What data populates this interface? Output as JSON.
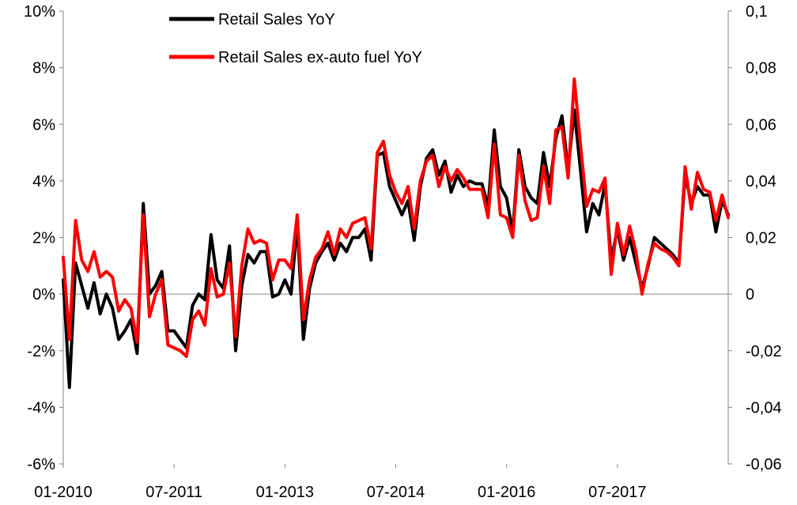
{
  "chart_data": {
    "type": "line",
    "title": "",
    "xlabel": "",
    "ylabel": "",
    "grid": false,
    "legend_position": "top-left",
    "y_left": {
      "ylim": [
        -6,
        10
      ],
      "ticks": [
        "-6%",
        "-4%",
        "-2%",
        "0%",
        "2%",
        "4%",
        "6%",
        "8%",
        "10%"
      ]
    },
    "y_right": {
      "ylim": [
        -0.06,
        0.1
      ],
      "ticks": [
        "-0,06",
        "-0,04",
        "-0,02",
        "0",
        "0,02",
        "0,04",
        "0,06",
        "0,08",
        "0,1"
      ]
    },
    "x_ticks": [
      "01-2010",
      "07-2011",
      "01-2013",
      "07-2014",
      "01-2016",
      "07-2017"
    ],
    "x_tick_positions": [
      0,
      18,
      36,
      54,
      72,
      90
    ],
    "colors": {
      "Retail Sales YoY": "#000000",
      "Retail Sales ex-auto fuel YoY": "#ff0000"
    },
    "series": [
      {
        "name": "Retail Sales YoY",
        "color": "#000000",
        "values": [
          0.5,
          -3.3,
          1.1,
          0.3,
          -0.5,
          0.4,
          -0.7,
          0.0,
          -0.5,
          -1.6,
          -1.3,
          -0.9,
          -2.1,
          3.2,
          0.0,
          0.3,
          0.8,
          -1.3,
          -1.3,
          -1.6,
          -1.9,
          -0.4,
          0.0,
          -0.2,
          2.1,
          0.5,
          0.2,
          1.7,
          -2.0,
          0.3,
          1.4,
          1.1,
          1.5,
          1.5,
          -0.1,
          0.0,
          0.5,
          0.0,
          2.5,
          -1.6,
          0.2,
          1.1,
          1.5,
          1.8,
          1.2,
          1.8,
          1.5,
          2.0,
          2.0,
          2.3,
          1.2,
          4.9,
          5.0,
          3.8,
          3.3,
          2.8,
          3.3,
          1.9,
          3.8,
          4.8,
          5.1,
          4.2,
          4.7,
          3.6,
          4.2,
          3.8,
          4.0,
          3.9,
          3.9,
          3.1,
          5.8,
          3.8,
          3.4,
          2.2,
          5.1,
          3.8,
          3.4,
          3.2,
          5.0,
          3.8,
          5.5,
          6.3,
          4.4,
          6.5,
          4.4,
          2.2,
          3.2,
          2.8,
          3.9,
          1.2,
          2.3,
          1.2,
          2.0,
          1.1,
          0.2,
          1.0,
          2.0,
          1.8,
          1.6,
          1.4,
          1.1,
          4.2,
          3.2,
          3.8,
          3.5,
          3.5,
          2.2,
          3.3,
          2.8
        ]
      },
      {
        "name": "Retail Sales ex-auto fuel YoY",
        "color": "#ff0000",
        "values": [
          1.3,
          -1.6,
          2.6,
          1.2,
          0.8,
          1.5,
          0.6,
          0.8,
          0.6,
          -0.6,
          -0.2,
          -0.5,
          -1.7,
          2.8,
          -0.8,
          0.0,
          0.5,
          -1.8,
          -1.9,
          -2.0,
          -2.2,
          -0.9,
          -0.6,
          -1.1,
          0.9,
          -0.1,
          0.0,
          1.1,
          -1.5,
          1.0,
          2.3,
          1.8,
          1.9,
          1.8,
          0.5,
          1.2,
          1.2,
          0.9,
          2.8,
          -0.9,
          0.5,
          1.3,
          1.6,
          2.2,
          1.4,
          2.3,
          2.0,
          2.5,
          2.6,
          2.7,
          1.6,
          5.0,
          5.4,
          4.2,
          3.6,
          3.2,
          3.8,
          2.3,
          4.0,
          4.7,
          4.9,
          3.8,
          4.5,
          4.0,
          4.4,
          4.1,
          3.7,
          3.7,
          3.7,
          2.7,
          5.3,
          2.8,
          2.7,
          2.0,
          4.9,
          3.3,
          2.6,
          2.7,
          4.5,
          3.2,
          5.8,
          5.9,
          4.1,
          7.6,
          5.3,
          3.1,
          3.7,
          3.6,
          4.1,
          0.7,
          2.5,
          1.4,
          2.4,
          1.5,
          0.0,
          1.1,
          1.8,
          1.6,
          1.5,
          1.3,
          1.0,
          4.5,
          3.0,
          4.3,
          3.7,
          3.6,
          2.6,
          3.5,
          2.7
        ]
      }
    ]
  }
}
